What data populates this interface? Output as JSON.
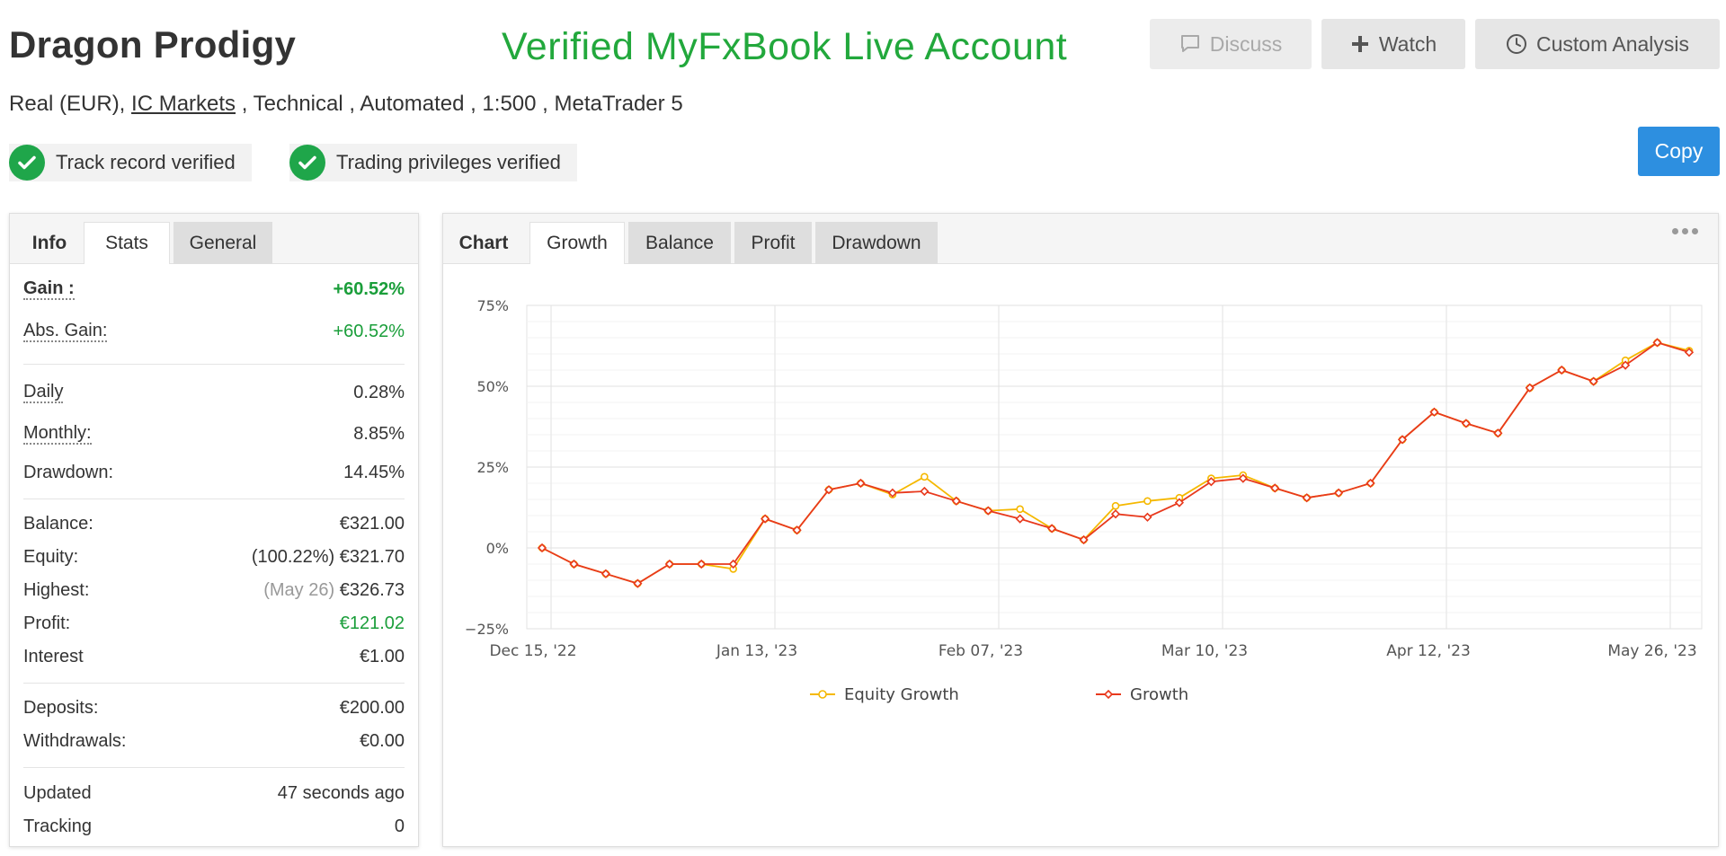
{
  "header": {
    "title": "Dragon Prodigy",
    "verified_title": "Verified MyFxBook Live Account",
    "subtitle_prefix": "Real (EUR), ",
    "subtitle_broker": "IC Markets",
    "subtitle_suffix": " , Technical , Automated , 1:500 , MetaTrader 5"
  },
  "actions": {
    "discuss": "Discuss",
    "watch": "Watch",
    "custom_analysis": "Custom Analysis",
    "copy": "Copy"
  },
  "badges": {
    "track_record": "Track record verified",
    "trading_privileges": "Trading privileges verified"
  },
  "stats_panel": {
    "tabs": [
      "Info",
      "Stats",
      "General"
    ],
    "gain_label": "Gain :",
    "gain_value": "+60.52%",
    "abs_gain_label": "Abs. Gain:",
    "abs_gain_value": "+60.52%",
    "daily_label": "Daily",
    "daily_value": "0.28%",
    "monthly_label": "Monthly:",
    "monthly_value": "8.85%",
    "drawdown_label": "Drawdown:",
    "drawdown_value": "14.45%",
    "balance_label": "Balance:",
    "balance_value": "€321.00",
    "equity_label": "Equity:",
    "equity_pct": "(100.22%)",
    "equity_value": "€321.70",
    "highest_label": "Highest:",
    "highest_date": "(May 26)",
    "highest_value": "€326.73",
    "profit_label": "Profit:",
    "profit_value": "€121.02",
    "interest_label": "Interest",
    "interest_value": "€1.00",
    "deposits_label": "Deposits:",
    "deposits_value": "€200.00",
    "withdrawals_label": "Withdrawals:",
    "withdrawals_value": "€0.00",
    "updated_label": "Updated",
    "updated_value": "47 seconds ago",
    "tracking_label": "Tracking",
    "tracking_value": "0"
  },
  "chart_panel": {
    "tabs": [
      "Chart",
      "Growth",
      "Balance",
      "Profit",
      "Drawdown"
    ]
  },
  "chart_data": {
    "type": "line",
    "y_ticks": [
      "75%",
      "50%",
      "25%",
      "0%",
      "−25%"
    ],
    "y_tick_values": [
      75,
      50,
      25,
      0,
      -25
    ],
    "ylim": [
      -25,
      75
    ],
    "x_ticks": [
      "Dec 15, '22",
      "Jan 13, '23",
      "Feb 07, '23",
      "Mar 10, '23",
      "Apr 12, '23",
      "May 26, '23"
    ],
    "grid": true,
    "legend_position": "bottom",
    "colors": {
      "equity": "#f5b800",
      "growth": "#e8391d"
    },
    "series": [
      {
        "name": "Equity Growth",
        "values": [
          0,
          -5,
          -8,
          -11,
          -5,
          -5,
          -6.5,
          9,
          5.5,
          18,
          20,
          16.5,
          22,
          14.5,
          11.5,
          12,
          6,
          2.5,
          13,
          14.5,
          15.5,
          21.5,
          22.5,
          18.5,
          15.5,
          17,
          20,
          33.5,
          42,
          38.5,
          35.5,
          49.5,
          55,
          51.5,
          58,
          63.5,
          61
        ]
      },
      {
        "name": "Growth",
        "values": [
          0,
          -5,
          -8,
          -11,
          -5,
          -5,
          -5,
          9,
          5.5,
          18,
          20,
          17,
          17.5,
          14.5,
          11.5,
          9,
          6,
          2.5,
          10.5,
          9.5,
          14,
          20.5,
          21.5,
          18.5,
          15.5,
          17,
          20,
          33.5,
          42,
          38.5,
          35.5,
          49.5,
          55,
          51.5,
          56.5,
          63.5,
          60.5
        ]
      }
    ]
  }
}
